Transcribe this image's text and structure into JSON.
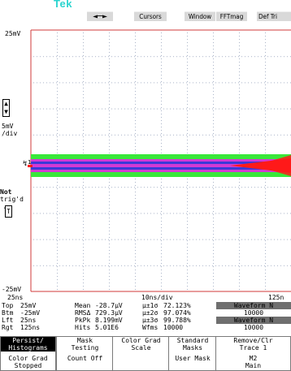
{
  "brand": "Tek",
  "toolbar": {
    "arrow": "◄─►",
    "cursors": "Cursors",
    "window": "Window",
    "fftmag": "FFTmag",
    "deftrig": "Def Tri"
  },
  "scale": {
    "top_level": "25mV",
    "bottom_level": "-25mV",
    "volts_per_div": "5mV",
    "per_div_unit": "/div",
    "time_left": "25ns",
    "time_center": "10ns/div",
    "time_right": "125n"
  },
  "status": {
    "not_label": "Not",
    "trigd_label": "trig'd",
    "trigger_level_marker": "T",
    "channel_marker": "1"
  },
  "colors": {
    "grid": "#d23a3a",
    "dots": "#aab4c8",
    "trace_green": "#39e83a",
    "trace_blue": "#3b39d8",
    "trace_magenta": "#d23ad4",
    "trace_red": "#ff1a1a",
    "button_active": "#000000"
  },
  "readouts": {
    "rows": [
      {
        "a_label": "Top",
        "a_value": "25mV",
        "m_label": "Mean",
        "m_value": "-28.7µV",
        "s_label": "µ±1σ",
        "s_value": "72.123%",
        "wf_label": "Waveform N"
      },
      {
        "a_label": "Btm",
        "a_value": "-25mV",
        "m_label": "RMSΔ",
        "m_value": "729.3µV",
        "s_label": "µ±2σ",
        "s_value": "97.074%",
        "wf_value": "10000"
      },
      {
        "a_label": "Lft",
        "a_value": "25ns",
        "m_label": "PkPk",
        "m_value": "8.199mV",
        "s_label": "µ±3σ",
        "s_value": "99.788%",
        "wf_label": "Waveform N"
      },
      {
        "a_label": "Rgt",
        "a_value": "125ns",
        "m_label": "Hits",
        "m_value": "5.01E6",
        "s_label": "Wfms",
        "s_value": "10000",
        "wf_value": "10000"
      }
    ]
  },
  "buttons": [
    {
      "line1": "Persist/",
      "line2": "Histograms",
      "sub1": "Color Grad",
      "sub2": "Stopped",
      "active": true
    },
    {
      "line1": "Mask",
      "line2": "Testing",
      "sub1": "Count Off",
      "sub2": ""
    },
    {
      "line1": "Color Grad",
      "line2": "Scale",
      "sub1": "",
      "sub2": ""
    },
    {
      "line1": "Standard",
      "line2": "Masks",
      "sub1": "User Mask",
      "sub2": ""
    },
    {
      "line1": "Remove/Clr",
      "line2": "Trace 1",
      "sub1": "M2",
      "sub2": "Main"
    }
  ]
}
